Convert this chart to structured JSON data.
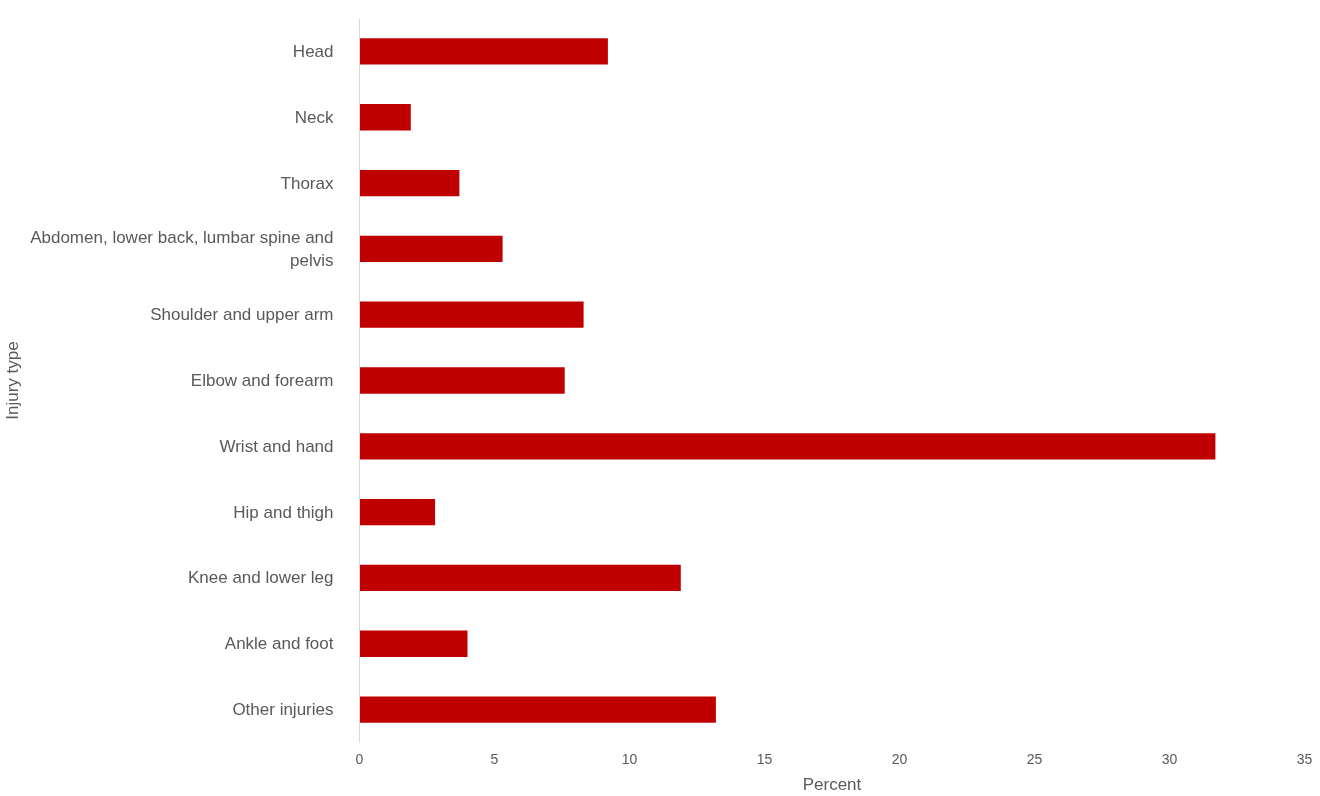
{
  "chart_data": {
    "type": "bar",
    "orientation": "horizontal",
    "xlabel": "Percent",
    "ylabel": "Injury type",
    "categories": [
      "Head",
      "Neck",
      "Thorax",
      "Abdomen, lower back, lumbar spine and pelvis",
      "Shoulder and upper arm",
      "Elbow and forearm",
      "Wrist and hand",
      "Hip and thigh",
      "Knee and lower leg",
      "Ankle and foot",
      "Other injuries"
    ],
    "values": [
      9.2,
      1.9,
      3.7,
      5.3,
      8.3,
      7.6,
      31.7,
      2.8,
      11.9,
      4.0,
      13.2
    ],
    "color": "#c00000",
    "xlim": [
      0,
      35
    ],
    "xticks": [
      0,
      5,
      10,
      15,
      20,
      25,
      30,
      35
    ]
  }
}
